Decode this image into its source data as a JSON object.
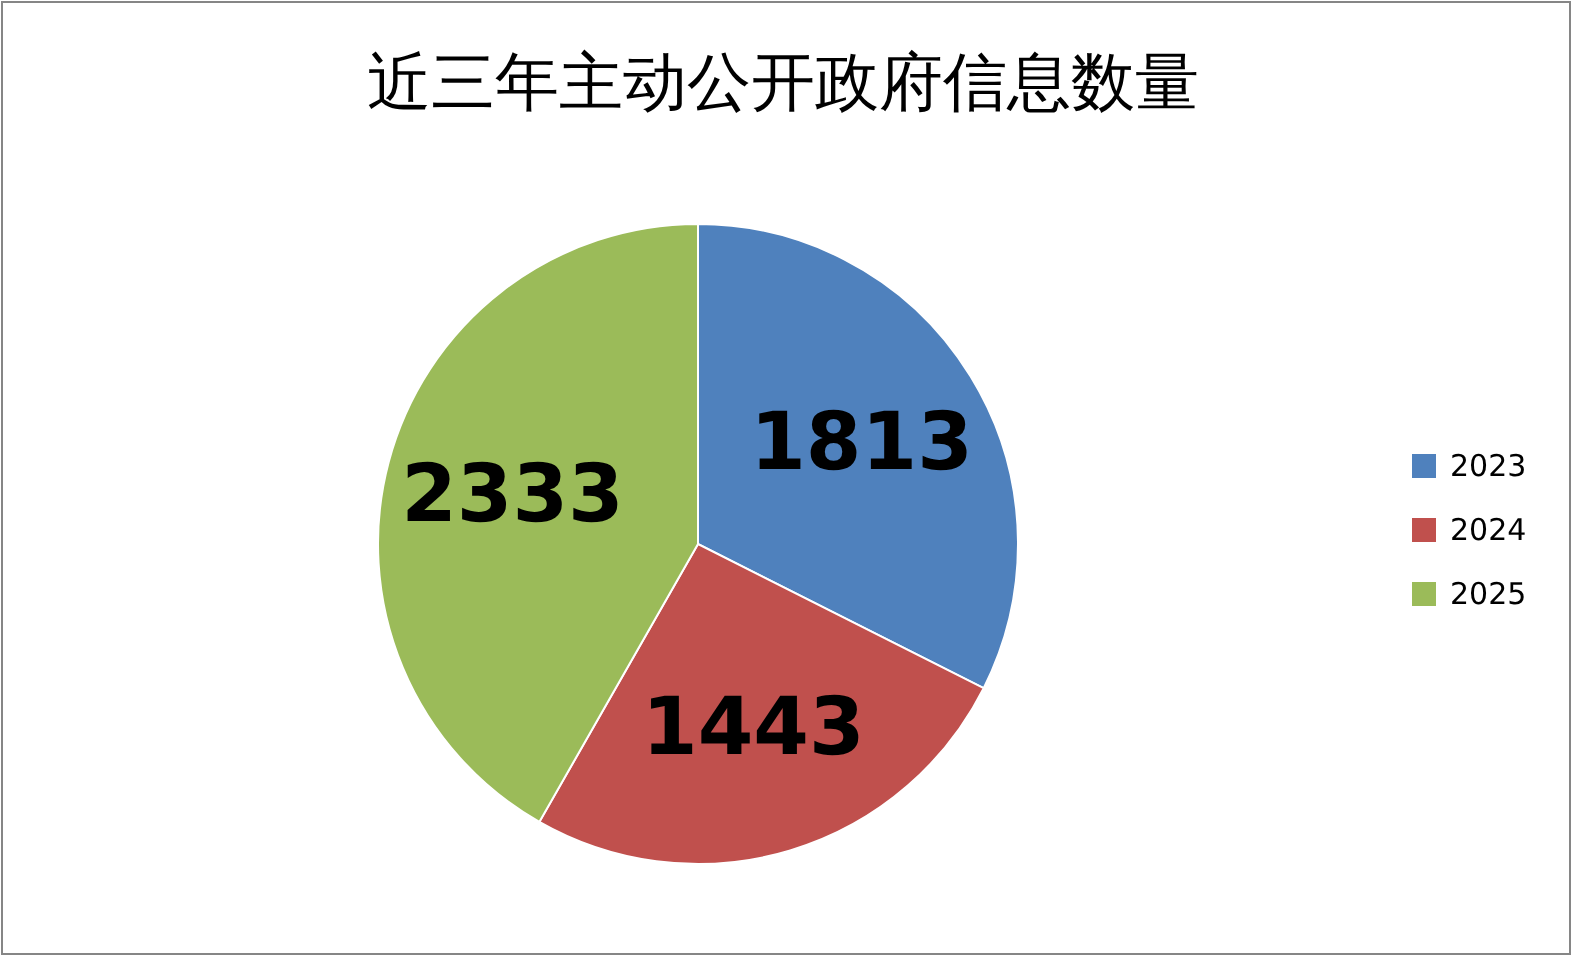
{
  "chart_data": {
    "type": "pie",
    "title": "近三年主动公开政府信息数量",
    "categories": [
      "2023",
      "2024",
      "2025"
    ],
    "values": [
      1813,
      1443,
      2333
    ],
    "colors": [
      "#4f81bd",
      "#c0504d",
      "#9bbb59"
    ],
    "data_labels": true,
    "legend": "right"
  }
}
